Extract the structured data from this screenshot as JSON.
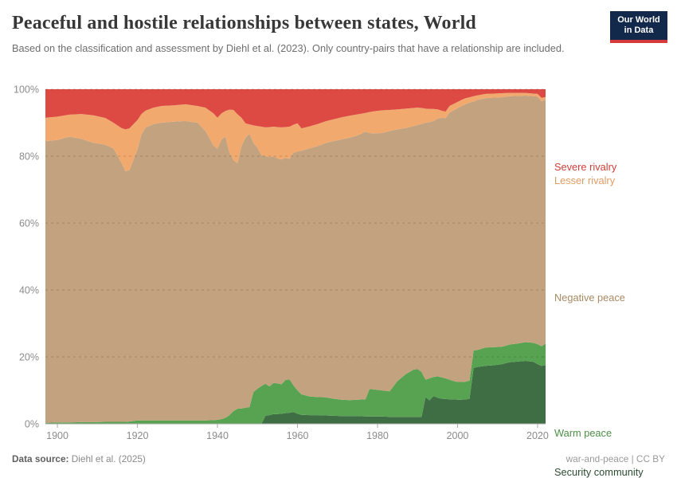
{
  "header": {
    "title": "Peaceful and hostile relationships between states, World",
    "subtitle": "Based on the classification and assessment by Diehl et al. (2023). Only country-pairs that have a relationship are included.",
    "logo": {
      "line1": "Our World",
      "line2": "in Data"
    }
  },
  "footer": {
    "source_label": "Data source:",
    "source_value": "Diehl et al. (2025)",
    "license": "war-and-peace | CC BY"
  },
  "chart_data": {
    "type": "area",
    "stacked": true,
    "unit": "%",
    "grid": "horizontal-dashed",
    "xlim": [
      1897,
      2022
    ],
    "ylim": [
      0,
      100
    ],
    "x_ticks": [
      1900,
      1920,
      1940,
      1960,
      1980,
      2000,
      2020
    ],
    "y_ticks": [
      0,
      20,
      40,
      60,
      80,
      100
    ],
    "y_tick_suffix": "%",
    "x": [
      1897,
      1900,
      1903,
      1906,
      1909,
      1912,
      1914,
      1916,
      1917,
      1918,
      1920,
      1921,
      1922,
      1924,
      1926,
      1929,
      1932,
      1935,
      1937,
      1939,
      1940,
      1941,
      1942,
      1943,
      1944,
      1945,
      1946,
      1947,
      1948,
      1949,
      1950,
      1951,
      1952,
      1953,
      1954,
      1955,
      1956,
      1957,
      1958,
      1959,
      1960,
      1961,
      1963,
      1965,
      1967,
      1969,
      1971,
      1973,
      1975,
      1977,
      1978,
      1979,
      1981,
      1983,
      1985,
      1987,
      1989,
      1990,
      1991,
      1992,
      1993,
      1994,
      1995,
      1996,
      1997,
      1998,
      1999,
      2000,
      2001,
      2002,
      2003,
      2004,
      2005,
      2007,
      2009,
      2011,
      2013,
      2015,
      2017,
      2019,
      2020,
      2021,
      2022
    ],
    "series": [
      {
        "name": "Security community",
        "color": "#3f6e45",
        "label_color": "#2b4c31",
        "values": [
          0,
          0,
          0,
          0,
          0,
          0,
          0,
          0,
          0,
          0,
          0,
          0,
          0,
          0,
          0,
          0,
          0,
          0,
          0,
          0,
          0,
          0,
          0,
          0,
          0,
          0,
          0,
          0,
          0,
          0,
          0,
          0,
          2.4,
          2.6,
          2.9,
          2.9,
          3.0,
          3.2,
          3.3,
          3.5,
          3.0,
          2.7,
          2.6,
          2.6,
          2.5,
          2.4,
          2.3,
          2.3,
          2.3,
          2.2,
          2.2,
          2.2,
          2.2,
          2.1,
          2.1,
          2.1,
          2.1,
          2.1,
          2.1,
          8.0,
          7.0,
          8.3,
          7.8,
          7.5,
          7.4,
          7.3,
          7.3,
          7.2,
          7.2,
          7.3,
          7.4,
          16.7,
          17.0,
          17.3,
          17.5,
          17.8,
          18.4,
          18.6,
          18.8,
          18.5,
          17.8,
          17.3,
          17.5
        ]
      },
      {
        "name": "Warm peace",
        "color": "#58a351",
        "label_color": "#4c8f45",
        "values": [
          0.3,
          0.4,
          0.4,
          0.5,
          0.5,
          0.6,
          0.6,
          0.6,
          0.6,
          0.7,
          1.0,
          1.0,
          1.0,
          1.0,
          1.0,
          1.0,
          1.0,
          1.0,
          1.0,
          1.1,
          1.2,
          1.4,
          1.8,
          2.6,
          3.8,
          4.5,
          4.6,
          4.8,
          5.0,
          9.5,
          10.5,
          11.3,
          9.6,
          8.6,
          9.3,
          9.2,
          8.8,
          9.9,
          10.0,
          8.0,
          7.0,
          6.1,
          5.6,
          5.4,
          5.4,
          5.1,
          4.9,
          4.8,
          4.9,
          5.1,
          8.2,
          8.1,
          7.8,
          7.6,
          10.7,
          12.7,
          14.1,
          14.3,
          13.4,
          5.2,
          6.6,
          5.7,
          6.4,
          6.4,
          6.2,
          5.9,
          5.5,
          5.3,
          5.3,
          5.3,
          5.5,
          5.2,
          5.1,
          5.5,
          5.4,
          5.2,
          5.3,
          5.4,
          5.6,
          5.7,
          6.0,
          5.9,
          6.5
        ]
      },
      {
        "name": "Negative peace",
        "color": "#c3a27f",
        "label_color": "#a98a63",
        "values": [
          84.2,
          84.4,
          85.4,
          84.7,
          83.5,
          82.8,
          81.7,
          77.4,
          74.9,
          75.1,
          81.0,
          85.5,
          87.5,
          88.6,
          89.0,
          89.3,
          89.5,
          89.0,
          86.5,
          82.1,
          81.0,
          83.6,
          84.0,
          78.4,
          75.0,
          73.4,
          78.4,
          80.7,
          81.7,
          74.5,
          72.0,
          69.0,
          68.0,
          68.5,
          67.8,
          67.2,
          67.2,
          66.4,
          65.9,
          69.5,
          71.4,
          72.8,
          74.1,
          75.0,
          76.0,
          77.0,
          77.8,
          78.4,
          79.0,
          80.0,
          76.5,
          76.5,
          76.9,
          77.8,
          75.2,
          73.6,
          72.8,
          72.9,
          74.1,
          76.8,
          76.6,
          76.5,
          77.0,
          77.6,
          77.7,
          79.8,
          80.9,
          81.8,
          82.5,
          82.9,
          83.1,
          74.4,
          74.7,
          74.5,
          74.6,
          74.6,
          74.2,
          74.0,
          73.7,
          73.7,
          74.0,
          73.2,
          72.9
        ]
      },
      {
        "name": "Lesser rivalry",
        "color": "#f2a96e",
        "label_color": "#e09c64",
        "values": [
          7.0,
          7.0,
          6.6,
          7.4,
          8.2,
          8.0,
          7.7,
          10.4,
          12.5,
          12.5,
          8.8,
          6.1,
          5.1,
          4.9,
          5.0,
          4.9,
          5.0,
          5.0,
          7.0,
          9.6,
          9.3,
          7.8,
          7.7,
          12.9,
          15.0,
          14.6,
          8.5,
          4.3,
          2.8,
          5.2,
          6.5,
          8.5,
          8.6,
          9.0,
          8.8,
          9.4,
          9.6,
          9.2,
          9.6,
          8.4,
          8.4,
          6.7,
          6.6,
          6.6,
          6.5,
          6.5,
          6.6,
          6.6,
          6.3,
          5.6,
          6.3,
          6.6,
          6.8,
          6.3,
          6.0,
          5.8,
          5.4,
          5.2,
          4.8,
          4.2,
          3.9,
          3.6,
          2.8,
          2.1,
          2.0,
          2.0,
          1.9,
          1.9,
          1.8,
          1.8,
          1.6,
          1.6,
          1.4,
          1.3,
          1.2,
          1.2,
          1.0,
          0.9,
          0.8,
          0.8,
          0.8,
          1.0,
          0.8
        ]
      },
      {
        "name": "Severe rivalry",
        "color": "#dc4a43",
        "label_color": "#ce3f38",
        "values": [
          8.5,
          8.2,
          7.6,
          7.4,
          7.8,
          8.6,
          10.0,
          11.6,
          12.0,
          11.7,
          9.2,
          7.4,
          6.4,
          5.5,
          5.0,
          4.8,
          4.5,
          5.0,
          5.5,
          7.2,
          8.5,
          7.2,
          6.5,
          6.1,
          6.2,
          7.5,
          8.5,
          10.2,
          10.5,
          10.8,
          11.0,
          11.2,
          11.4,
          11.3,
          11.2,
          11.3,
          11.4,
          11.3,
          11.2,
          10.6,
          10.2,
          11.7,
          11.1,
          10.4,
          9.6,
          9.0,
          8.4,
          7.9,
          7.5,
          7.1,
          6.8,
          6.6,
          6.3,
          6.2,
          6.0,
          5.8,
          5.6,
          5.5,
          5.6,
          5.8,
          5.9,
          5.9,
          6.0,
          6.4,
          6.7,
          5.0,
          4.4,
          3.8,
          3.2,
          2.7,
          2.4,
          2.1,
          1.8,
          1.4,
          1.3,
          1.2,
          1.1,
          1.1,
          1.1,
          1.3,
          1.4,
          2.6,
          2.3
        ]
      }
    ]
  }
}
